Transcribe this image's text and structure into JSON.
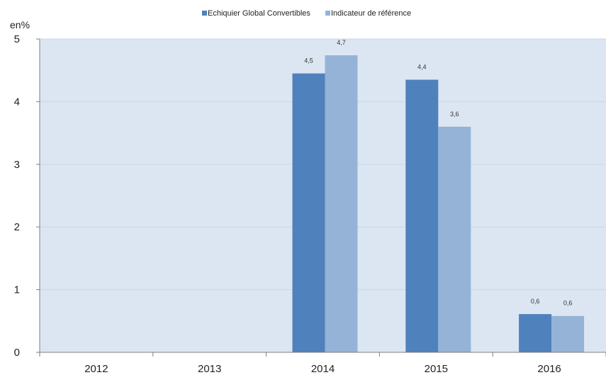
{
  "chart_data": {
    "type": "bar",
    "unit_label": "en%",
    "categories": [
      "2012",
      "2013",
      "2014",
      "2015",
      "2016"
    ],
    "series": [
      {
        "name": "Echiquier Global Convertibles",
        "values": [
          null,
          null,
          4.45,
          4.35,
          0.61
        ],
        "labels": [
          "",
          "",
          "4,5",
          "4,4",
          "0,6"
        ]
      },
      {
        "name": "Indicateur de référence",
        "values": [
          null,
          null,
          4.74,
          3.6,
          0.58
        ],
        "labels": [
          "",
          "",
          "4,7",
          "3,6",
          "0,6"
        ]
      }
    ],
    "ylim": [
      0,
      5
    ],
    "yticks": [
      0,
      1,
      2,
      3,
      4,
      5
    ],
    "grid": true,
    "legend_position": "top-center",
    "colors": {
      "series": [
        "#4f81bd",
        "#95b3d7"
      ],
      "plot_background": "#dce6f2",
      "gridline": "#c5d5ea",
      "axis": "#7f7f7f"
    }
  }
}
